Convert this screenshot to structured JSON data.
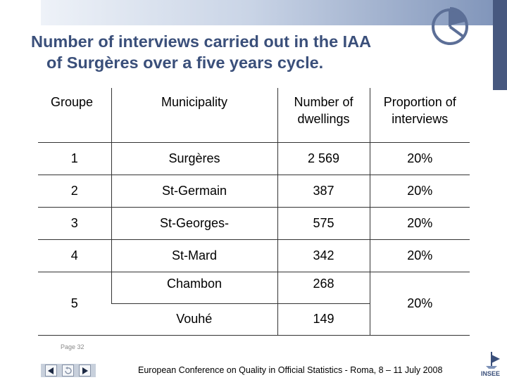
{
  "title": {
    "line1": "Number of interviews carried out in the IAA",
    "line2": "of Surgères over a five years cycle."
  },
  "table": {
    "headers": [
      "Groupe",
      "Municipality",
      "Number of dwellings",
      "Proportion of interviews"
    ],
    "header_lines": {
      "dwellings": [
        "Number of",
        "dwellings"
      ],
      "proportion": [
        "Proportion of",
        "interviews"
      ]
    },
    "rows": [
      {
        "groupe": "1",
        "municipality": "Surgères",
        "dwellings": "2 569",
        "proportion": "20%"
      },
      {
        "groupe": "2",
        "municipality": "St-Germain",
        "dwellings": "387",
        "proportion": "20%"
      },
      {
        "groupe": "3",
        "municipality": "St-Georges-",
        "dwellings": "575",
        "proportion": "20%"
      },
      {
        "groupe": "4",
        "municipality": "St-Mard",
        "dwellings": "342",
        "proportion": "20%"
      }
    ],
    "group5": {
      "groupe": "5",
      "proportion": "20%",
      "sub": [
        {
          "municipality": "Chambon",
          "dwellings": "268"
        },
        {
          "municipality": "Vouhé",
          "dwellings": "149"
        }
      ]
    }
  },
  "page_label": "Page 32",
  "footer": "European Conference on Quality in Official Statistics - Roma, 8 – 11 July 2008",
  "logo_text": "INSEE",
  "nav": {
    "prev_icon": "triangle-left-icon",
    "home_icon": "return-icon",
    "next_icon": "triangle-right-icon"
  },
  "colors": {
    "title": "#3a4f7a",
    "band": "#47587f"
  }
}
